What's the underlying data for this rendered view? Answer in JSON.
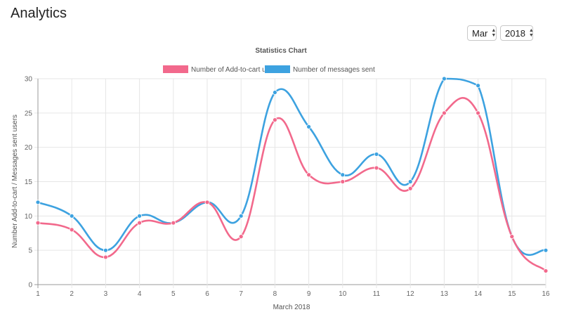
{
  "page": {
    "title": "Analytics"
  },
  "filters": {
    "month": "Mar",
    "year": "2018"
  },
  "colors": {
    "addToCart": "#f2698c",
    "messagesSent": "#3da2e0"
  },
  "chart_data": {
    "type": "line",
    "title": "Statistics Chart",
    "xlabel": "March 2018",
    "ylabel": "Number Add-to-cart / Messages sent users",
    "x": [
      1,
      2,
      3,
      4,
      5,
      6,
      7,
      8,
      9,
      10,
      11,
      12,
      13,
      14,
      15,
      16
    ],
    "ylim": [
      0,
      30
    ],
    "yticks": [
      0,
      5,
      10,
      15,
      20,
      25,
      30
    ],
    "grid": true,
    "curve": "smooth",
    "legend_position": "top",
    "series": [
      {
        "name": "Number of  Add-to-cart users",
        "color": "#f2698c",
        "values": [
          9,
          8,
          4,
          9,
          9,
          12,
          7,
          24,
          16,
          15,
          17,
          14,
          25,
          25,
          7,
          2
        ]
      },
      {
        "name": "Number of messages sent",
        "color": "#3da2e0",
        "values": [
          12,
          10,
          5,
          10,
          9,
          12,
          10,
          28,
          23,
          16,
          19,
          15,
          30,
          29,
          7,
          5
        ]
      }
    ]
  }
}
